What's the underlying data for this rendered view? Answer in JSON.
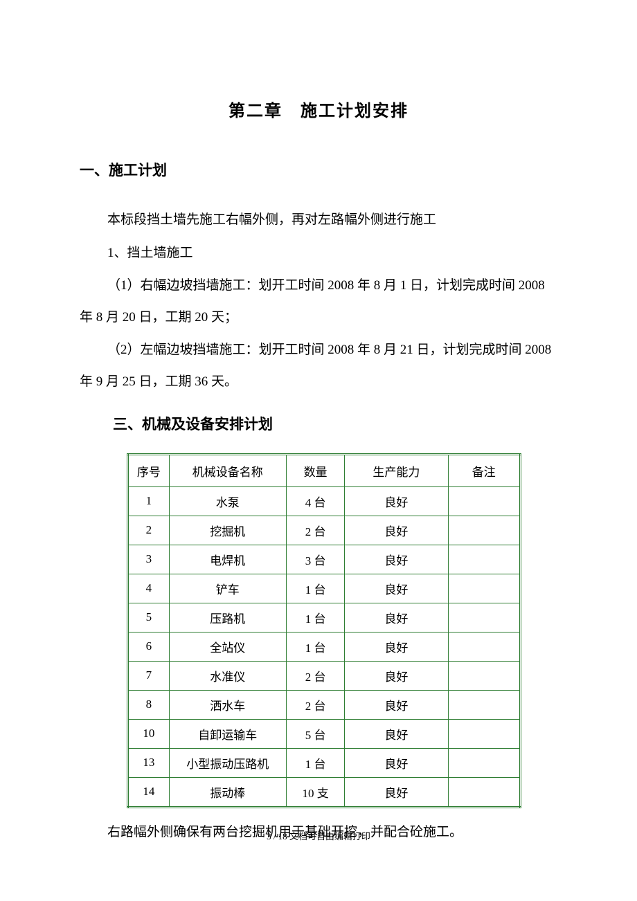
{
  "chapter_title": "第二章　施工计划安排",
  "sections": {
    "plan_heading": "一、施工计划",
    "equipment_heading": "三、机械及设备安排计划"
  },
  "paragraphs": {
    "intro": "本标段挡土墙先施工右幅外侧，再对左路幅外侧进行施工",
    "item1": "1、挡土墙施工",
    "item1_1": "（1）右幅边坡挡墙施工：划开工时间 2008 年 8 月 1 日，计划完成时间 2008 年 8 月 20 日，工期 20 天；",
    "item1_2": "（2）左幅边坡挡墙施工：划开工时间 2008 年 8 月 21 日，计划完成时间 2008 年 9 月 25 日，工期 36 天。",
    "after_table": "右路幅外侧确保有两台挖掘机用于基础开挖，并配合砼施工。"
  },
  "table": {
    "border_color": "#2e7d32",
    "columns": [
      "序号",
      "机械设备名称",
      "数量",
      "生产能力",
      "备注"
    ],
    "rows": [
      [
        "1",
        "水泵",
        "4 台",
        "良好",
        ""
      ],
      [
        "2",
        "挖掘机",
        "2 台",
        "良好",
        ""
      ],
      [
        "3",
        "电焊机",
        "3 台",
        "良好",
        ""
      ],
      [
        "4",
        "铲车",
        "1 台",
        "良好",
        ""
      ],
      [
        "5",
        "压路机",
        "1 台",
        "良好",
        ""
      ],
      [
        "6",
        "全站仪",
        "1 台",
        "良好",
        ""
      ],
      [
        "7",
        "水准仪",
        "2 台",
        "良好",
        ""
      ],
      [
        "8",
        "洒水车",
        "2 台",
        "良好",
        ""
      ],
      [
        "10",
        "自卸运输车",
        "5 台",
        "良好",
        ""
      ],
      [
        "13",
        "小型振动压路机",
        "1 台",
        "良好",
        ""
      ],
      [
        "14",
        "振动棒",
        "10 支",
        "良好",
        ""
      ]
    ]
  },
  "footer": "3 / 18 文档可自由编辑打印"
}
